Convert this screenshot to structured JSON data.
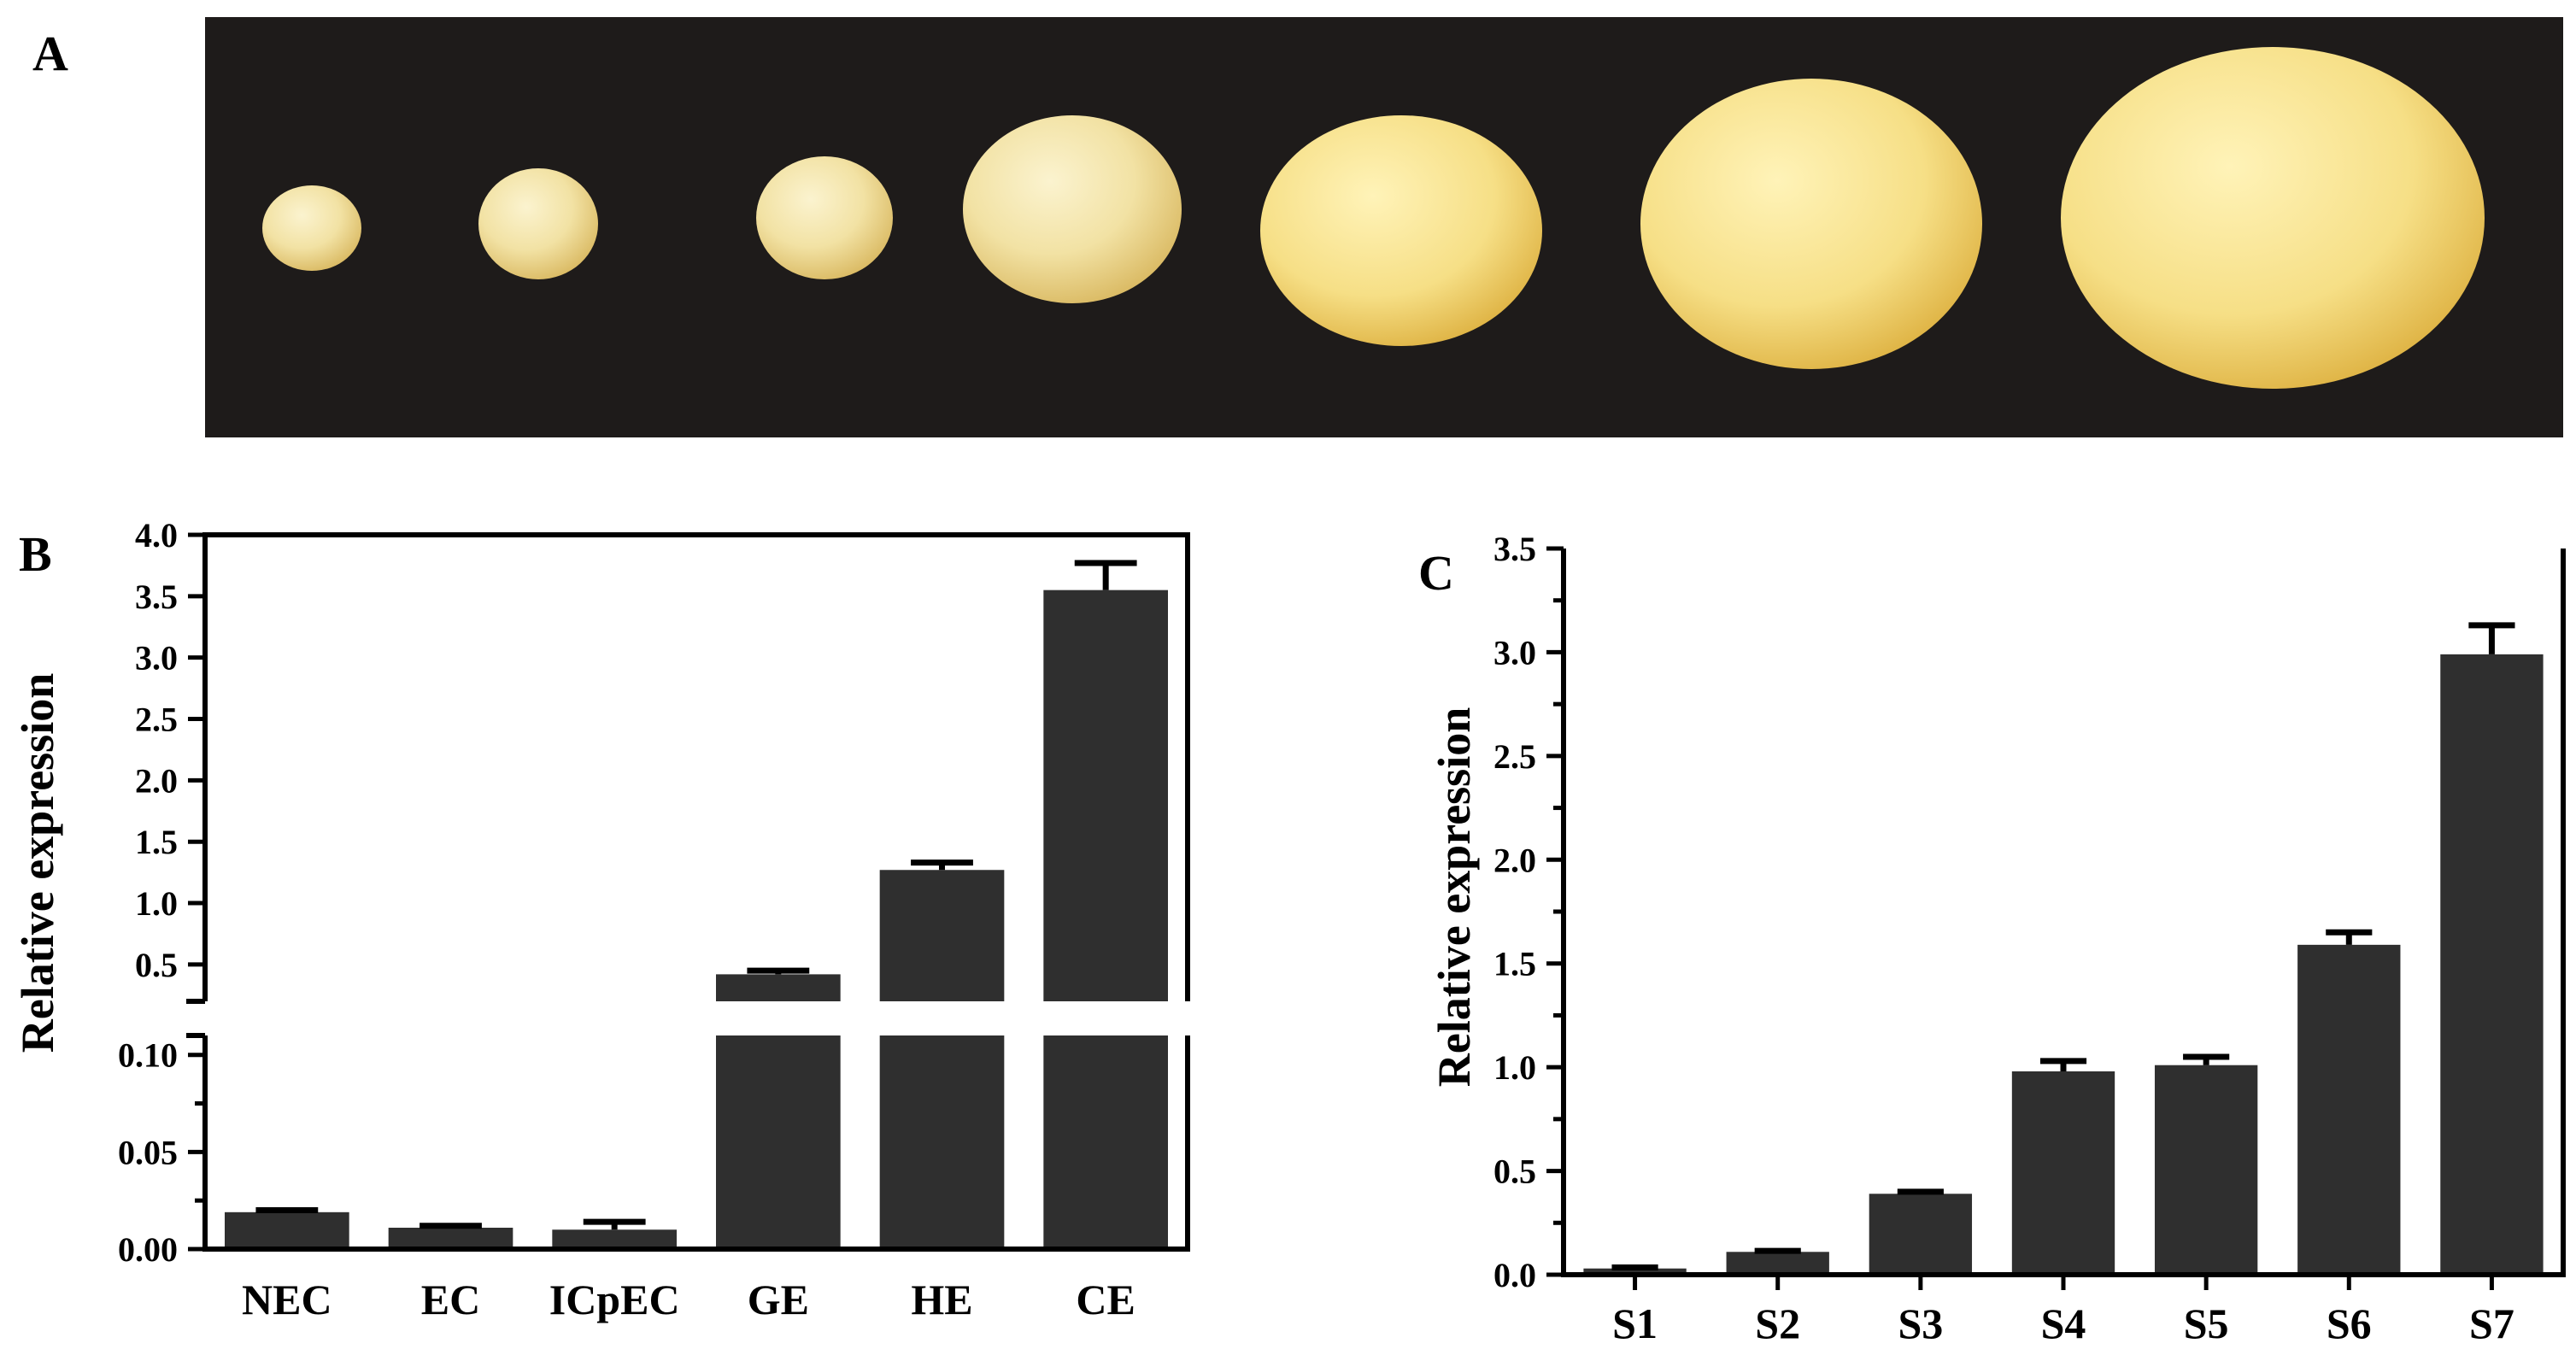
{
  "panels": {
    "a": {
      "letter": "A"
    },
    "b": {
      "letter": "B"
    },
    "c": {
      "letter": "C"
    }
  },
  "photo": {
    "background_color": "#1e1b1a",
    "seed_color": "#f2e2a4",
    "object_count": 7
  },
  "chart_data": [
    {
      "panel": "B",
      "type": "bar",
      "ylabel": "Relative expression",
      "categories": [
        "NEC",
        "EC",
        "ICpEC",
        "GE",
        "HE",
        "CE"
      ],
      "values": [
        0.019,
        0.011,
        0.01,
        0.42,
        1.27,
        3.55
      ],
      "errors": [
        0.001,
        0.001,
        0.004,
        0.03,
        0.06,
        0.22
      ],
      "axis_break": true,
      "lower_segment": {
        "ylim": [
          0,
          0.11
        ],
        "ticks": [
          "0.00",
          "0.05",
          "0.10"
        ]
      },
      "upper_segment": {
        "ylim": [
          0.2,
          4.0
        ],
        "ticks": [
          "0.5",
          "1.0",
          "1.5",
          "2.0",
          "2.5",
          "3.0",
          "3.5",
          "4.0"
        ]
      },
      "bar_color": "#2f2f2f",
      "grid": false
    },
    {
      "panel": "C",
      "type": "bar",
      "ylabel": "Relative expression",
      "categories": [
        "S1",
        "S2",
        "S3",
        "S4",
        "S5",
        "S6",
        "S7"
      ],
      "values": [
        0.03,
        0.11,
        0.39,
        0.98,
        1.01,
        1.59,
        2.99
      ],
      "errors": [
        0.005,
        0.005,
        0.01,
        0.05,
        0.04,
        0.06,
        0.14
      ],
      "ylim": [
        0,
        3.5
      ],
      "ticks": [
        "0.0",
        "0.5",
        "1.0",
        "1.5",
        "2.0",
        "2.5",
        "3.0",
        "3.5"
      ],
      "bar_color": "#2f2f2f",
      "grid": false
    }
  ]
}
